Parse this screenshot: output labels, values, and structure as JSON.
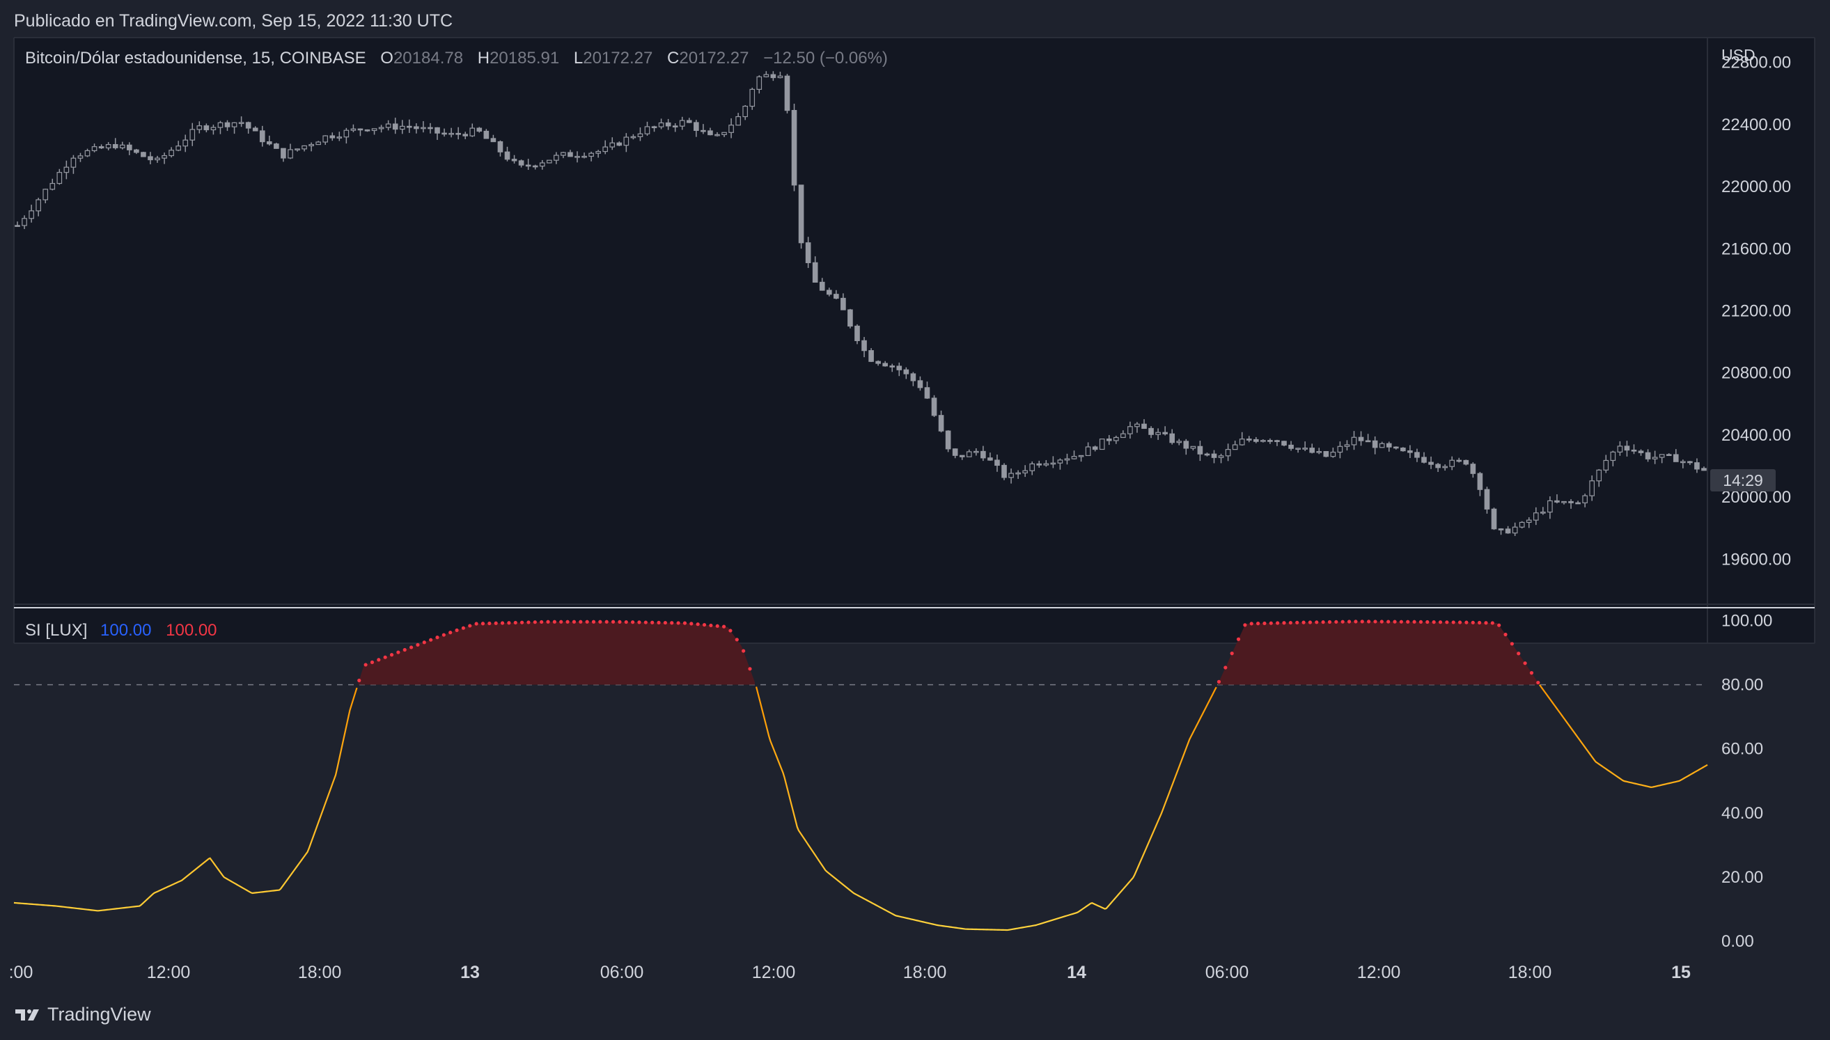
{
  "header": {
    "published": "Publicado en TradingView.com, Sep 15, 2022 11:30 UTC"
  },
  "legend": {
    "symbol": "Bitcoin/Dólar estadounidense, 15, COINBASE",
    "o_label": "O",
    "o_value": "20184.78",
    "h_label": "H",
    "h_value": "20185.91",
    "l_label": "L",
    "l_value": "20172.27",
    "c_label": "C",
    "c_value": "20172.27",
    "change": "−12.50 (−0.06%)"
  },
  "indicator_legend": {
    "name": "SI [LUX]",
    "value1": "100.00",
    "value2": "100.00"
  },
  "currency": "USD",
  "countdown": "14:29",
  "brand": "TradingView",
  "colors": {
    "background": "#131722",
    "frame": "#1e222d",
    "candle": "#9598a1",
    "line_orange": "#ff9800",
    "line_yellow": "#ffd740",
    "dots_red": "#f23645",
    "fill_red": "#4c1a20",
    "value1_blue": "#2962ff",
    "value2_red": "#f23645"
  },
  "chart_data": [
    {
      "type": "candlestick",
      "title": "Bitcoin/Dólar estadounidense, 15, COINBASE",
      "ylabel": "USD",
      "x_ticks": [
        ":00",
        "12:00",
        "18:00",
        "13",
        "06:00",
        "12:00",
        "18:00",
        "14",
        "06:00",
        "12:00",
        "18:00",
        "15"
      ],
      "y_ticks": [
        "22800.00",
        "22400.00",
        "22000.00",
        "21600.00",
        "21200.00",
        "20800.00",
        "20400.00",
        "20000.00",
        "19600.00"
      ],
      "ylim": [
        19310,
        22960
      ],
      "close_path": [
        [
          0,
          21750
        ],
        [
          4,
          22200
        ],
        [
          7,
          22270
        ],
        [
          10,
          22160
        ],
        [
          13,
          22380
        ],
        [
          16,
          22420
        ],
        [
          19,
          22200
        ],
        [
          22,
          22320
        ],
        [
          25,
          22380
        ],
        [
          28,
          22390
        ],
        [
          31,
          22330
        ],
        [
          33,
          22360
        ],
        [
          36,
          22120
        ],
        [
          39,
          22200
        ],
        [
          42,
          22230
        ],
        [
          45,
          22370
        ],
        [
          48,
          22420
        ],
        [
          50,
          22300
        ],
        [
          52,
          22470
        ],
        [
          53,
          22700
        ],
        [
          55,
          22740
        ],
        [
          56,
          21730
        ],
        [
          57,
          21400
        ],
        [
          59,
          21240
        ],
        [
          61,
          20900
        ],
        [
          63,
          20840
        ],
        [
          65,
          20700
        ],
        [
          67,
          20250
        ],
        [
          69,
          20300
        ],
        [
          71,
          20120
        ],
        [
          73,
          20220
        ],
        [
          76,
          20270
        ],
        [
          78,
          20360
        ],
        [
          80,
          20460
        ],
        [
          82,
          20400
        ],
        [
          84,
          20320
        ],
        [
          86,
          20240
        ],
        [
          88,
          20370
        ],
        [
          90,
          20380
        ],
        [
          92,
          20310
        ],
        [
          94,
          20260
        ],
        [
          96,
          20380
        ],
        [
          98,
          20320
        ],
        [
          100,
          20270
        ],
        [
          102,
          20210
        ],
        [
          104,
          20230
        ],
        [
          105,
          20060
        ],
        [
          106,
          19760
        ],
        [
          108,
          19820
        ],
        [
          110,
          19960
        ],
        [
          112,
          19960
        ],
        [
          114,
          20240
        ],
        [
          115,
          20340
        ],
        [
          117,
          20260
        ],
        [
          119,
          20250
        ],
        [
          121,
          20170
        ]
      ],
      "last_open": "20184.78",
      "last_high": "20185.91",
      "last_low": "20172.27",
      "last_close": "20172.27"
    },
    {
      "type": "line",
      "title": "SI [LUX]",
      "y_ticks": [
        "100.00",
        "80.00",
        "60.00",
        "40.00",
        "20.00",
        "0.00"
      ],
      "ylim": [
        -3,
        104
      ],
      "threshold": 80,
      "series": [
        {
          "values_path": [
            [
              0,
              12
            ],
            [
              3,
              11
            ],
            [
              6,
              9.5
            ],
            [
              9,
              11
            ],
            [
              10,
              15
            ],
            [
              12,
              19
            ],
            [
              14,
              26
            ],
            [
              15,
              20
            ],
            [
              17,
              15
            ],
            [
              19,
              16
            ],
            [
              21,
              28
            ],
            [
              23,
              52
            ],
            [
              24,
              72
            ],
            [
              25,
              86
            ],
            [
              28,
              91
            ],
            [
              31,
              96
            ],
            [
              33,
              99
            ],
            [
              38,
              99.6
            ],
            [
              43,
              99.6
            ],
            [
              48,
              99.2
            ],
            [
              51,
              98
            ],
            [
              52,
              92
            ],
            [
              53,
              80
            ],
            [
              54,
              63
            ],
            [
              55,
              52
            ],
            [
              56,
              35
            ],
            [
              58,
              22
            ],
            [
              60,
              15
            ],
            [
              63,
              8
            ],
            [
              66,
              5
            ],
            [
              68,
              3.8
            ],
            [
              71,
              3.5
            ],
            [
              73,
              5
            ],
            [
              76,
              9
            ],
            [
              77,
              12
            ],
            [
              78,
              10
            ],
            [
              80,
              20
            ],
            [
              82,
              40
            ],
            [
              84,
              63
            ],
            [
              86,
              80
            ],
            [
              88,
              99
            ],
            [
              92,
              99.4
            ],
            [
              96,
              99.7
            ],
            [
              100,
              99.6
            ],
            [
              104,
              99.4
            ],
            [
              106,
              99.2
            ],
            [
              107,
              93
            ],
            [
              109,
              80
            ],
            [
              111,
              68
            ],
            [
              113,
              56
            ],
            [
              115,
              50
            ],
            [
              117,
              48
            ],
            [
              119,
              50
            ],
            [
              121,
              55
            ]
          ]
        }
      ]
    }
  ]
}
